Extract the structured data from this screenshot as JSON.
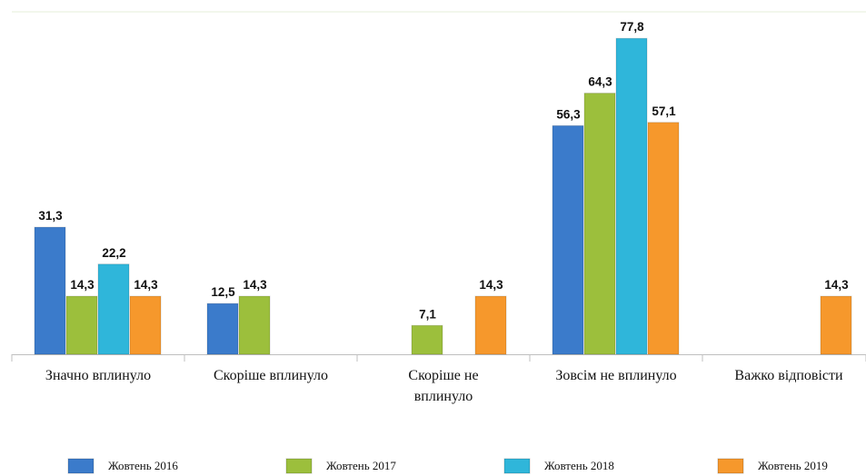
{
  "chart_data": {
    "type": "bar",
    "categories": [
      "Значно вплинуло",
      "Скоріше вплинуло",
      "Скоріше не\nвплинуло",
      "Зовсім не вплинуло",
      "Важко відповісти"
    ],
    "series": [
      {
        "name": "Жовтень 2016",
        "color": "#3b7bcb",
        "values": [
          31.3,
          12.5,
          null,
          56.3,
          null
        ],
        "value_labels": [
          "31,3",
          "12,5",
          null,
          "56,3",
          null
        ]
      },
      {
        "name": "Жовтень 2017",
        "color": "#9cbf3c",
        "values": [
          14.3,
          14.3,
          7.1,
          64.3,
          null
        ],
        "value_labels": [
          "14,3",
          "14,3",
          "7,1",
          "64,3",
          null
        ]
      },
      {
        "name": "Жовтень 2018",
        "color": "#2fb6da",
        "values": [
          22.2,
          null,
          null,
          77.8,
          null
        ],
        "value_labels": [
          "22,2",
          null,
          null,
          "77,8",
          null
        ]
      },
      {
        "name": "Жовтень 2019",
        "color": "#f6982c",
        "values": [
          14.3,
          null,
          14.3,
          57.1,
          14.3
        ],
        "value_labels": [
          "14,3",
          null,
          "14,3",
          "57,1",
          "14,3"
        ]
      }
    ]
  }
}
